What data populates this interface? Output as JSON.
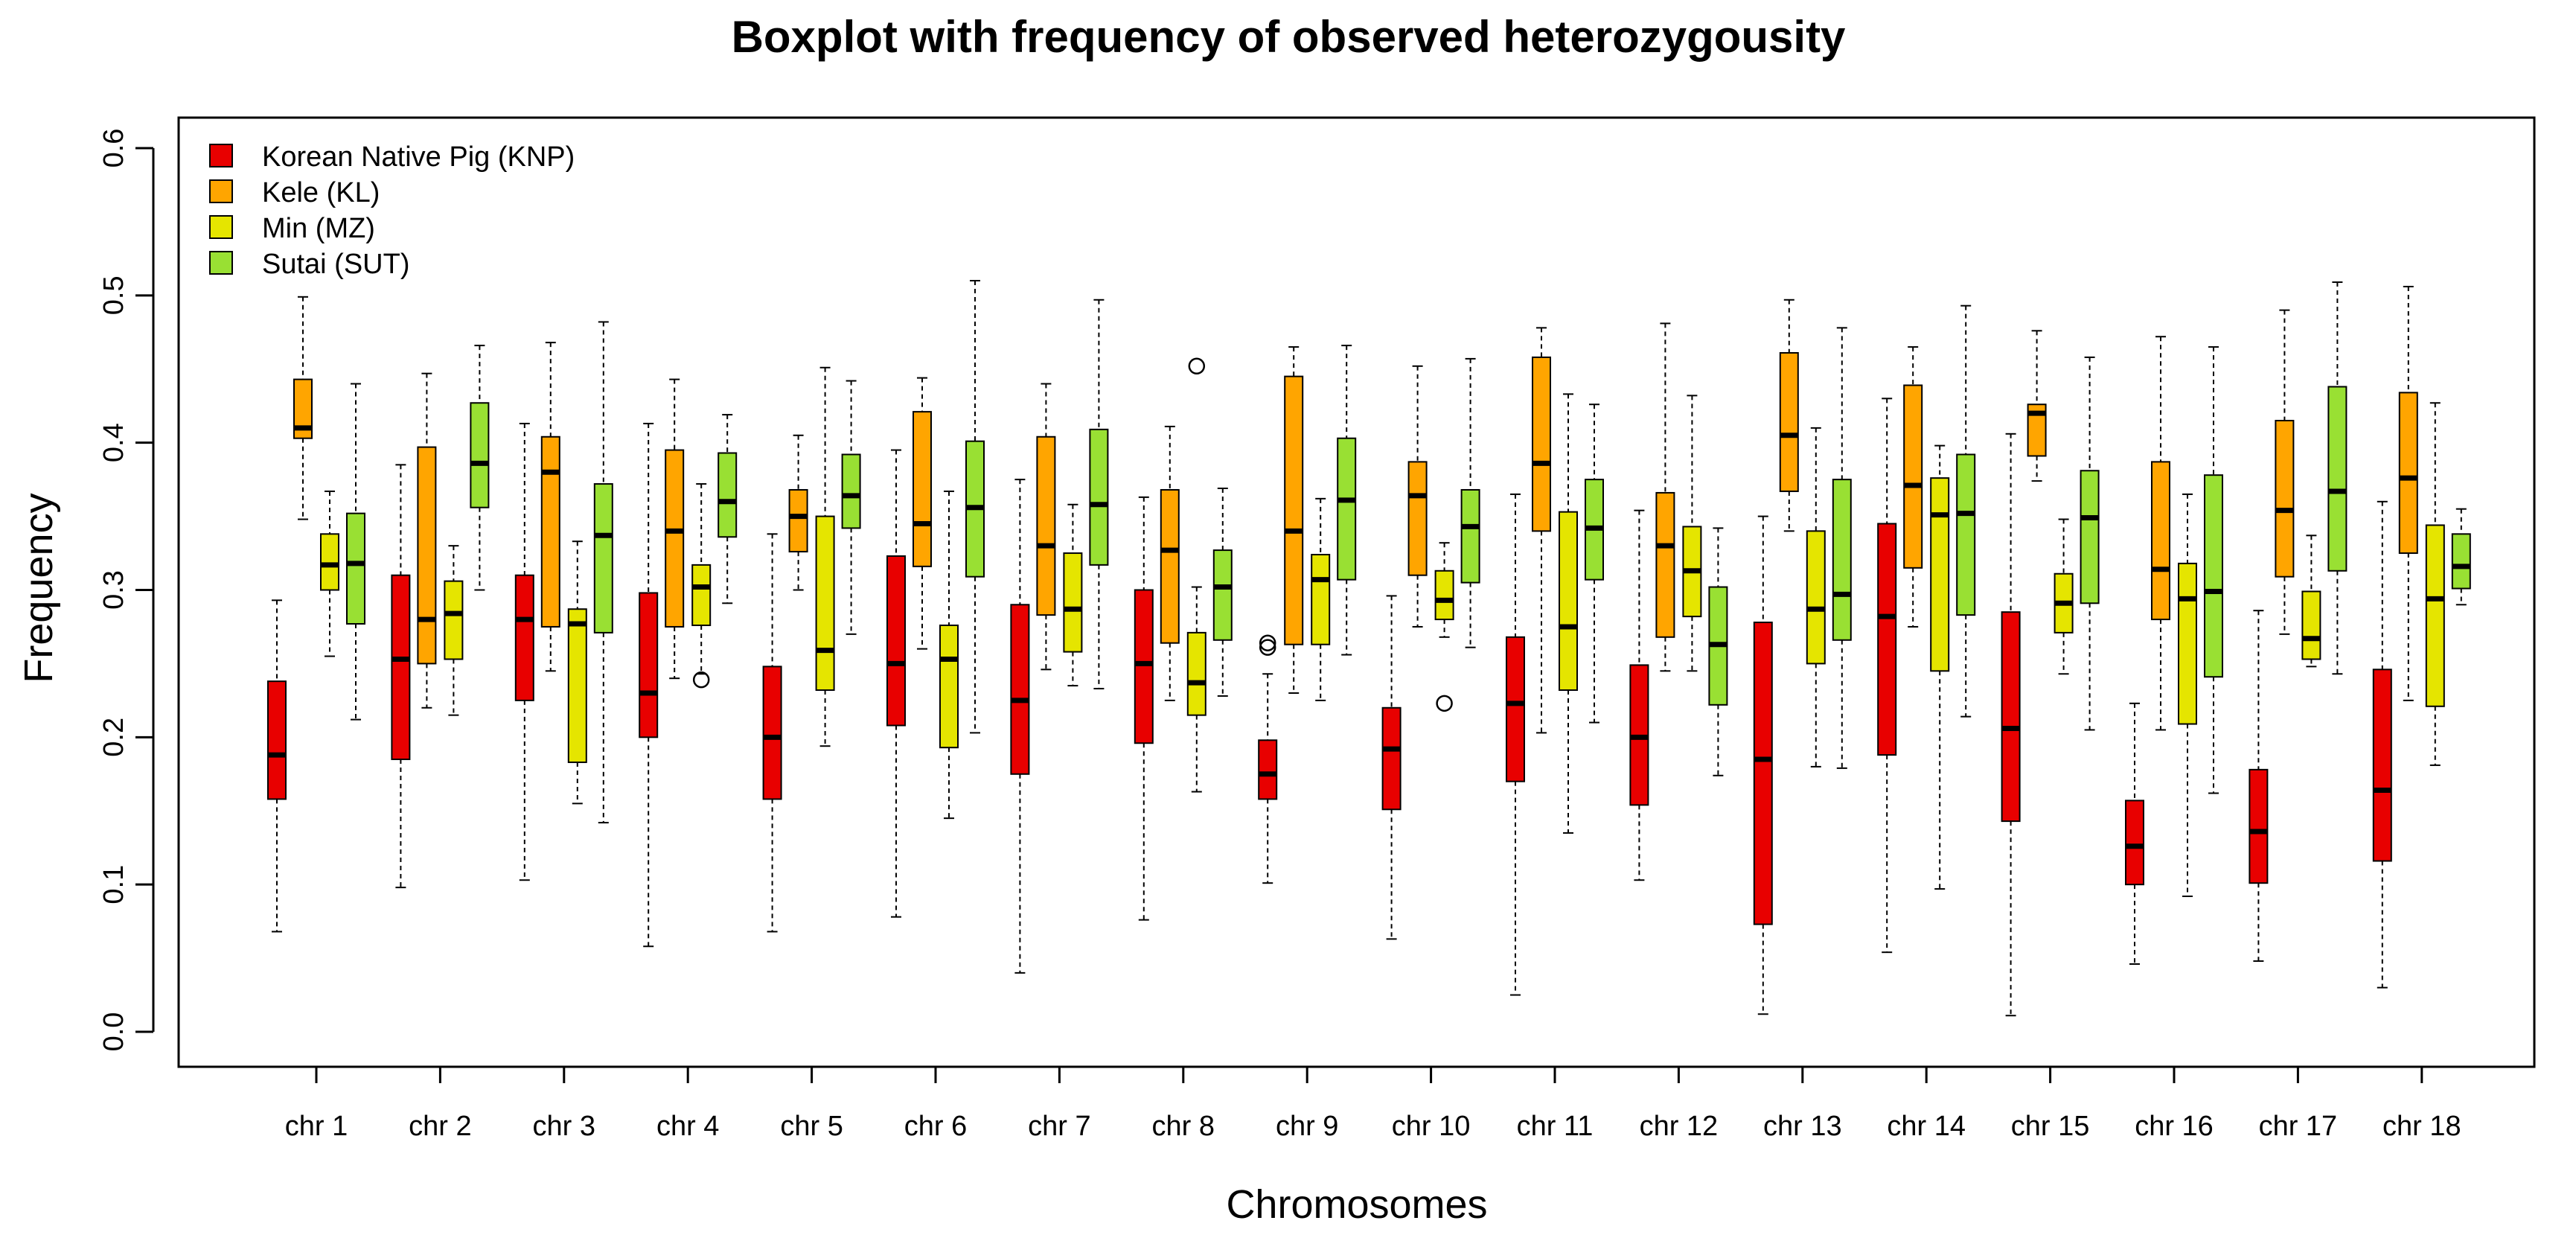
{
  "chart_data": {
    "type": "boxplot",
    "title": "Boxplot with frequency of observed heterozygousity",
    "xlabel": "Chromosomes",
    "ylabel": "Frequency",
    "ylim": [
      0.0,
      0.6
    ],
    "y_ticks": [
      "0.0",
      "0.1",
      "0.2",
      "0.3",
      "0.4",
      "0.5",
      "0.6"
    ],
    "categories": [
      "chr 1",
      "chr 2",
      "chr 3",
      "chr 4",
      "chr 5",
      "chr 6",
      "chr 7",
      "chr 8",
      "chr 9",
      "chr 10",
      "chr 11",
      "chr 12",
      "chr 13",
      "chr 14",
      "chr 15",
      "chr 16",
      "chr 17",
      "chr 18"
    ],
    "legend_position": "top-left",
    "series": [
      {
        "name": "Korean Native Pig (KNP)",
        "color": "#E80000",
        "boxes": [
          {
            "min": 0.068,
            "q1": 0.158,
            "median": 0.188,
            "q3": 0.238,
            "max": 0.293,
            "outliers": []
          },
          {
            "min": 0.098,
            "q1": 0.185,
            "median": 0.253,
            "q3": 0.31,
            "max": 0.385,
            "outliers": []
          },
          {
            "min": 0.103,
            "q1": 0.225,
            "median": 0.28,
            "q3": 0.31,
            "max": 0.413,
            "outliers": []
          },
          {
            "min": 0.058,
            "q1": 0.2,
            "median": 0.23,
            "q3": 0.298,
            "max": 0.413,
            "outliers": []
          },
          {
            "min": 0.068,
            "q1": 0.158,
            "median": 0.2,
            "q3": 0.248,
            "max": 0.338,
            "outliers": []
          },
          {
            "min": 0.078,
            "q1": 0.208,
            "median": 0.25,
            "q3": 0.323,
            "max": 0.395,
            "outliers": []
          },
          {
            "min": 0.04,
            "q1": 0.175,
            "median": 0.225,
            "q3": 0.29,
            "max": 0.375,
            "outliers": []
          },
          {
            "min": 0.076,
            "q1": 0.196,
            "median": 0.25,
            "q3": 0.3,
            "max": 0.363,
            "outliers": []
          },
          {
            "min": 0.101,
            "q1": 0.158,
            "median": 0.175,
            "q3": 0.198,
            "max": 0.243,
            "outliers": [
              0.261,
              0.264
            ]
          },
          {
            "min": 0.063,
            "q1": 0.151,
            "median": 0.192,
            "q3": 0.22,
            "max": 0.296,
            "outliers": []
          },
          {
            "min": 0.025,
            "q1": 0.17,
            "median": 0.223,
            "q3": 0.268,
            "max": 0.365,
            "outliers": []
          },
          {
            "min": 0.103,
            "q1": 0.154,
            "median": 0.2,
            "q3": 0.249,
            "max": 0.354,
            "outliers": []
          },
          {
            "min": 0.012,
            "q1": 0.073,
            "median": 0.185,
            "q3": 0.278,
            "max": 0.35,
            "outliers": []
          },
          {
            "min": 0.054,
            "q1": 0.188,
            "median": 0.282,
            "q3": 0.345,
            "max": 0.43,
            "outliers": []
          },
          {
            "min": 0.011,
            "q1": 0.143,
            "median": 0.206,
            "q3": 0.285,
            "max": 0.406,
            "outliers": []
          },
          {
            "min": 0.046,
            "q1": 0.1,
            "median": 0.126,
            "q3": 0.157,
            "max": 0.223,
            "outliers": []
          },
          {
            "min": 0.048,
            "q1": 0.101,
            "median": 0.136,
            "q3": 0.178,
            "max": 0.286,
            "outliers": []
          },
          {
            "min": 0.03,
            "q1": 0.116,
            "median": 0.164,
            "q3": 0.246,
            "max": 0.36,
            "outliers": []
          }
        ]
      },
      {
        "name": "Kele (KL)",
        "color": "#FFA500",
        "boxes": [
          {
            "min": 0.348,
            "q1": 0.403,
            "median": 0.41,
            "q3": 0.443,
            "max": 0.499,
            "outliers": []
          },
          {
            "min": 0.22,
            "q1": 0.25,
            "median": 0.28,
            "q3": 0.397,
            "max": 0.447,
            "outliers": []
          },
          {
            "min": 0.245,
            "q1": 0.275,
            "median": 0.38,
            "q3": 0.404,
            "max": 0.468,
            "outliers": []
          },
          {
            "min": 0.24,
            "q1": 0.275,
            "median": 0.34,
            "q3": 0.395,
            "max": 0.443,
            "outliers": []
          },
          {
            "min": 0.3,
            "q1": 0.326,
            "median": 0.35,
            "q3": 0.368,
            "max": 0.405,
            "outliers": []
          },
          {
            "min": 0.26,
            "q1": 0.316,
            "median": 0.345,
            "q3": 0.421,
            "max": 0.444,
            "outliers": []
          },
          {
            "min": 0.246,
            "q1": 0.283,
            "median": 0.33,
            "q3": 0.404,
            "max": 0.44,
            "outliers": []
          },
          {
            "min": 0.225,
            "q1": 0.264,
            "median": 0.327,
            "q3": 0.368,
            "max": 0.411,
            "outliers": []
          },
          {
            "min": 0.23,
            "q1": 0.263,
            "median": 0.34,
            "q3": 0.445,
            "max": 0.465,
            "outliers": []
          },
          {
            "min": 0.275,
            "q1": 0.31,
            "median": 0.364,
            "q3": 0.387,
            "max": 0.452,
            "outliers": []
          },
          {
            "min": 0.203,
            "q1": 0.34,
            "median": 0.386,
            "q3": 0.458,
            "max": 0.478,
            "outliers": []
          },
          {
            "min": 0.245,
            "q1": 0.268,
            "median": 0.33,
            "q3": 0.366,
            "max": 0.481,
            "outliers": []
          },
          {
            "min": 0.34,
            "q1": 0.367,
            "median": 0.405,
            "q3": 0.461,
            "max": 0.497,
            "outliers": []
          },
          {
            "min": 0.275,
            "q1": 0.315,
            "median": 0.371,
            "q3": 0.439,
            "max": 0.465,
            "outliers": []
          },
          {
            "min": 0.374,
            "q1": 0.391,
            "median": 0.42,
            "q3": 0.426,
            "max": 0.476,
            "outliers": []
          },
          {
            "min": 0.205,
            "q1": 0.28,
            "median": 0.314,
            "q3": 0.387,
            "max": 0.472,
            "outliers": []
          },
          {
            "min": 0.27,
            "q1": 0.309,
            "median": 0.354,
            "q3": 0.415,
            "max": 0.49,
            "outliers": []
          },
          {
            "min": 0.225,
            "q1": 0.325,
            "median": 0.376,
            "q3": 0.434,
            "max": 0.506,
            "outliers": []
          }
        ]
      },
      {
        "name": "Min (MZ)",
        "color": "#E5E500",
        "boxes": [
          {
            "min": 0.255,
            "q1": 0.3,
            "median": 0.317,
            "q3": 0.338,
            "max": 0.367,
            "outliers": []
          },
          {
            "min": 0.215,
            "q1": 0.253,
            "median": 0.284,
            "q3": 0.306,
            "max": 0.33,
            "outliers": []
          },
          {
            "min": 0.155,
            "q1": 0.183,
            "median": 0.277,
            "q3": 0.287,
            "max": 0.333,
            "outliers": []
          },
          {
            "min": 0.243,
            "q1": 0.276,
            "median": 0.302,
            "q3": 0.317,
            "max": 0.372,
            "outliers": [
              0.239
            ]
          },
          {
            "min": 0.194,
            "q1": 0.232,
            "median": 0.259,
            "q3": 0.35,
            "max": 0.451,
            "outliers": []
          },
          {
            "min": 0.145,
            "q1": 0.193,
            "median": 0.253,
            "q3": 0.276,
            "max": 0.367,
            "outliers": []
          },
          {
            "min": 0.235,
            "q1": 0.258,
            "median": 0.287,
            "q3": 0.325,
            "max": 0.358,
            "outliers": []
          },
          {
            "min": 0.163,
            "q1": 0.215,
            "median": 0.237,
            "q3": 0.271,
            "max": 0.302,
            "outliers": [
              0.452
            ]
          },
          {
            "min": 0.225,
            "q1": 0.263,
            "median": 0.307,
            "q3": 0.324,
            "max": 0.362,
            "outliers": []
          },
          {
            "min": 0.268,
            "q1": 0.28,
            "median": 0.293,
            "q3": 0.313,
            "max": 0.332,
            "outliers": [
              0.223
            ]
          },
          {
            "min": 0.135,
            "q1": 0.232,
            "median": 0.275,
            "q3": 0.353,
            "max": 0.433,
            "outliers": []
          },
          {
            "min": 0.245,
            "q1": 0.282,
            "median": 0.313,
            "q3": 0.343,
            "max": 0.432,
            "outliers": []
          },
          {
            "min": 0.18,
            "q1": 0.25,
            "median": 0.287,
            "q3": 0.34,
            "max": 0.41,
            "outliers": []
          },
          {
            "min": 0.097,
            "q1": 0.245,
            "median": 0.351,
            "q3": 0.376,
            "max": 0.398,
            "outliers": []
          },
          {
            "min": 0.243,
            "q1": 0.271,
            "median": 0.291,
            "q3": 0.311,
            "max": 0.348,
            "outliers": []
          },
          {
            "min": 0.092,
            "q1": 0.209,
            "median": 0.294,
            "q3": 0.318,
            "max": 0.365,
            "outliers": []
          },
          {
            "min": 0.248,
            "q1": 0.253,
            "median": 0.267,
            "q3": 0.299,
            "max": 0.337,
            "outliers": []
          },
          {
            "min": 0.181,
            "q1": 0.221,
            "median": 0.294,
            "q3": 0.344,
            "max": 0.427,
            "outliers": []
          }
        ]
      },
      {
        "name": "Sutai (SUT)",
        "color": "#99E033",
        "boxes": [
          {
            "min": 0.212,
            "q1": 0.277,
            "median": 0.318,
            "q3": 0.352,
            "max": 0.44,
            "outliers": []
          },
          {
            "min": 0.3,
            "q1": 0.356,
            "median": 0.386,
            "q3": 0.427,
            "max": 0.466,
            "outliers": []
          },
          {
            "min": 0.142,
            "q1": 0.271,
            "median": 0.337,
            "q3": 0.372,
            "max": 0.482,
            "outliers": []
          },
          {
            "min": 0.291,
            "q1": 0.336,
            "median": 0.36,
            "q3": 0.393,
            "max": 0.419,
            "outliers": []
          },
          {
            "min": 0.27,
            "q1": 0.342,
            "median": 0.364,
            "q3": 0.392,
            "max": 0.442,
            "outliers": []
          },
          {
            "min": 0.203,
            "q1": 0.309,
            "median": 0.356,
            "q3": 0.401,
            "max": 0.51,
            "outliers": []
          },
          {
            "min": 0.233,
            "q1": 0.317,
            "median": 0.358,
            "q3": 0.409,
            "max": 0.497,
            "outliers": []
          },
          {
            "min": 0.228,
            "q1": 0.266,
            "median": 0.302,
            "q3": 0.327,
            "max": 0.369,
            "outliers": []
          },
          {
            "min": 0.256,
            "q1": 0.307,
            "median": 0.361,
            "q3": 0.403,
            "max": 0.466,
            "outliers": []
          },
          {
            "min": 0.261,
            "q1": 0.305,
            "median": 0.343,
            "q3": 0.368,
            "max": 0.457,
            "outliers": []
          },
          {
            "min": 0.21,
            "q1": 0.307,
            "median": 0.342,
            "q3": 0.375,
            "max": 0.426,
            "outliers": []
          },
          {
            "min": 0.174,
            "q1": 0.222,
            "median": 0.263,
            "q3": 0.302,
            "max": 0.342,
            "outliers": []
          },
          {
            "min": 0.179,
            "q1": 0.266,
            "median": 0.297,
            "q3": 0.375,
            "max": 0.478,
            "outliers": []
          },
          {
            "min": 0.214,
            "q1": 0.283,
            "median": 0.352,
            "q3": 0.392,
            "max": 0.493,
            "outliers": []
          },
          {
            "min": 0.205,
            "q1": 0.291,
            "median": 0.349,
            "q3": 0.381,
            "max": 0.458,
            "outliers": []
          },
          {
            "min": 0.162,
            "q1": 0.241,
            "median": 0.299,
            "q3": 0.378,
            "max": 0.465,
            "outliers": []
          },
          {
            "min": 0.243,
            "q1": 0.313,
            "median": 0.367,
            "q3": 0.438,
            "max": 0.509,
            "outliers": []
          },
          {
            "min": 0.29,
            "q1": 0.301,
            "median": 0.316,
            "q3": 0.338,
            "max": 0.355,
            "outliers": []
          }
        ]
      }
    ]
  }
}
